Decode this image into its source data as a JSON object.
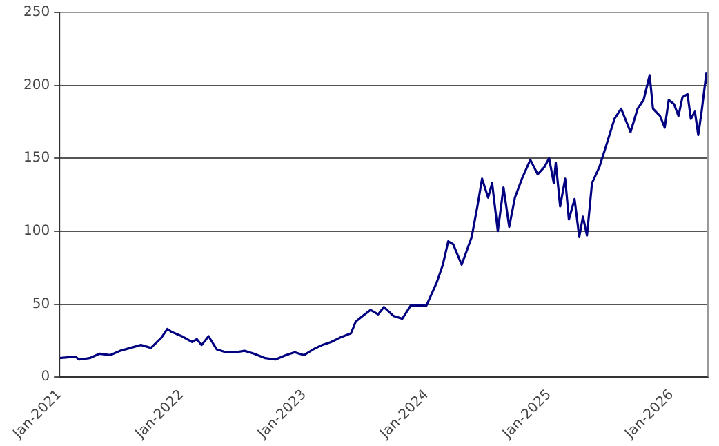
{
  "chart_data": {
    "type": "line",
    "x": [
      "2021-01-01",
      "2021-02-17",
      "2021-03-01",
      "2021-04-01",
      "2021-05-01",
      "2021-06-01",
      "2021-07-01",
      "2021-08-01",
      "2021-09-01",
      "2021-10-01",
      "2021-11-01",
      "2021-11-19",
      "2021-12-01",
      "2022-01-01",
      "2022-02-01",
      "2022-02-15",
      "2022-03-01",
      "2022-03-22",
      "2022-04-15",
      "2022-05-13",
      "2022-06-10",
      "2022-07-07",
      "2022-08-04",
      "2022-09-07",
      "2022-10-07",
      "2022-11-07",
      "2022-12-04",
      "2023-01-01",
      "2023-01-28",
      "2023-02-24",
      "2023-03-22",
      "2023-04-18",
      "2023-05-21",
      "2023-06-04",
      "2023-06-25",
      "2023-07-18",
      "2023-08-10",
      "2023-08-27",
      "2023-09-24",
      "2023-10-21",
      "2023-11-15",
      "2024-01-01",
      "2024-02-01",
      "2024-02-19",
      "2024-03-06",
      "2024-03-21",
      "2024-04-15",
      "2024-05-15",
      "2024-06-01",
      "2024-06-15",
      "2024-07-03",
      "2024-07-15",
      "2024-08-01",
      "2024-08-18",
      "2024-09-04",
      "2024-09-21",
      "2024-10-12",
      "2024-11-06",
      "2024-11-28",
      "2024-12-18",
      "2025-01-01",
      "2025-01-15",
      "2025-01-21",
      "2025-02-03",
      "2025-02-18",
      "2025-03-01",
      "2025-03-18",
      "2025-04-01",
      "2025-04-12",
      "2025-04-24",
      "2025-05-09",
      "2025-05-31",
      "2025-06-18",
      "2025-07-15",
      "2025-08-04",
      "2025-09-01",
      "2025-09-22",
      "2025-10-10",
      "2025-10-28",
      "2025-11-07",
      "2025-11-28",
      "2025-12-12",
      "2025-12-24",
      "2026-01-09",
      "2026-01-22",
      "2026-02-03",
      "2026-02-18",
      "2026-02-28",
      "2026-03-12",
      "2026-03-22",
      "2026-04-01",
      "2026-04-15",
      "2026-04-18"
    ],
    "series": [
      {
        "color": "#000080",
        "values": [
          13,
          14,
          12,
          13,
          16,
          15,
          18,
          20,
          22,
          20,
          27,
          33,
          31,
          28,
          24,
          26,
          22,
          28,
          19,
          17,
          17,
          18,
          16,
          13,
          12,
          15,
          17,
          15,
          19,
          22,
          24,
          27,
          30,
          38,
          42,
          46,
          43,
          48,
          42,
          40,
          49,
          49,
          65,
          77,
          93,
          91,
          77,
          96,
          117,
          136,
          123,
          133,
          100,
          130,
          103,
          123,
          136,
          149,
          139,
          144,
          150,
          133,
          147,
          117,
          136,
          108,
          122,
          96,
          110,
          97,
          133,
          144,
          157,
          177,
          184,
          168,
          184,
          190,
          207,
          184,
          179,
          171,
          190,
          187,
          179,
          192,
          194,
          177,
          182,
          166,
          182,
          208,
          201
        ]
      }
    ],
    "xlim": [
      "2021-01-01",
      "2026-04-20"
    ],
    "xticks": [
      {
        "value": "2021-01-01",
        "label": "Jan-2021"
      },
      {
        "value": "2022-01-01",
        "label": "Jan-2022"
      },
      {
        "value": "2023-01-01",
        "label": "Jan-2023"
      },
      {
        "value": "2024-01-01",
        "label": "Jan-2024"
      },
      {
        "value": "2025-01-01",
        "label": "Jan-2025"
      },
      {
        "value": "2026-01-01",
        "label": "Jan-2026"
      }
    ],
    "ylim": [
      0,
      250
    ],
    "yticks": [
      0,
      50,
      100,
      150,
      200,
      250
    ],
    "grid": "y",
    "legend": false,
    "marker": "none",
    "line_style": "solid"
  }
}
